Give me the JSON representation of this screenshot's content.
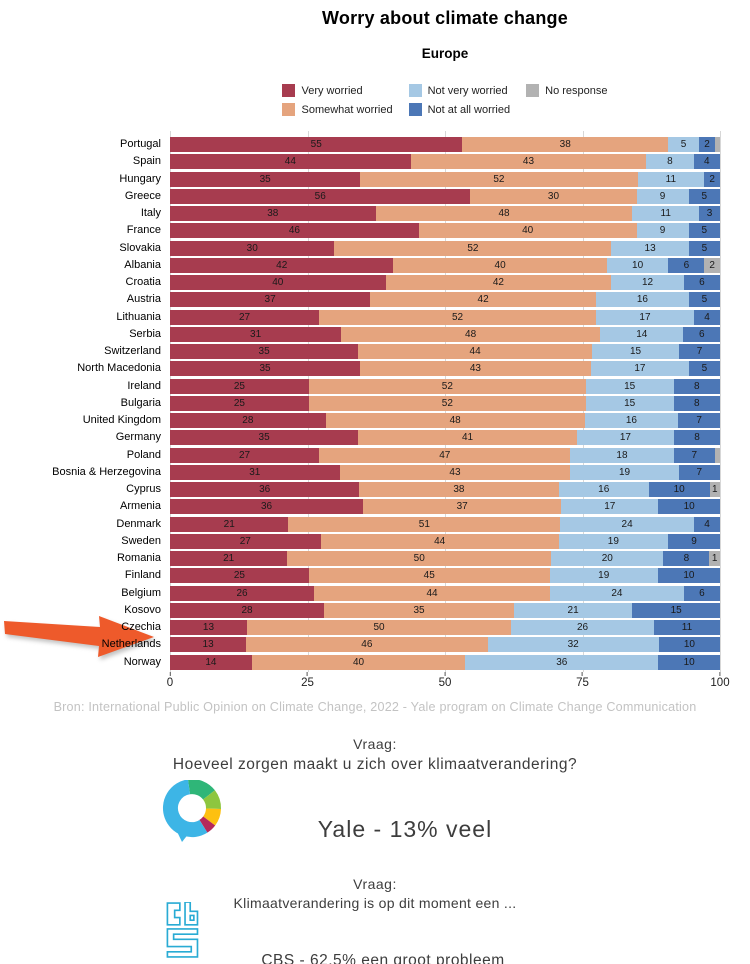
{
  "chart": {
    "title": "Worry about climate change",
    "subtitle": "Europe"
  },
  "legend": {
    "items": [
      {
        "label": "Very worried",
        "color": "#A73C4F"
      },
      {
        "label": "Somewhat worried",
        "color": "#E5A47E"
      },
      {
        "label": "Not very worried",
        "color": "#A5C8E4"
      },
      {
        "label": "Not at all worried",
        "color": "#4C77B6"
      },
      {
        "label": "No response",
        "color": "#B2B2B2"
      }
    ]
  },
  "chart_data": {
    "type": "bar",
    "stacked": true,
    "orientation": "horizontal",
    "grid": true,
    "legend_position": "top-center",
    "xlim": [
      0,
      100
    ],
    "x_ticks": [
      0,
      25,
      50,
      75,
      100
    ],
    "series_names": [
      "Very worried",
      "Somewhat worried",
      "Not very worried",
      "Not at all worried",
      "No response"
    ],
    "series_colors": [
      "#A73C4F",
      "#E5A47E",
      "#A5C8E4",
      "#4C77B6",
      "#B2B2B2"
    ],
    "rows": [
      {
        "country": "Portugal",
        "values": [
          55,
          38,
          5,
          2,
          1
        ],
        "labels": [
          "55",
          "38",
          "5",
          "2",
          ""
        ]
      },
      {
        "country": "Spain",
        "values": [
          44,
          43,
          8,
          4,
          0
        ],
        "labels": [
          "44",
          "43",
          "8",
          "4",
          ""
        ]
      },
      {
        "country": "Hungary",
        "values": [
          35,
          52,
          11,
          2,
          0
        ],
        "labels": [
          "35",
          "52",
          "11",
          "2",
          ""
        ]
      },
      {
        "country": "Greece",
        "values": [
          56,
          30,
          9,
          5,
          0
        ],
        "labels": [
          "56",
          "30",
          "9",
          "5",
          ""
        ]
      },
      {
        "country": "Italy",
        "values": [
          38,
          48,
          11,
          3,
          0
        ],
        "labels": [
          "38",
          "48",
          "11",
          "3",
          ""
        ]
      },
      {
        "country": "France",
        "values": [
          46,
          40,
          9,
          5,
          0
        ],
        "labels": [
          "46",
          "40",
          "9",
          "5",
          ""
        ]
      },
      {
        "country": "Slovakia",
        "values": [
          30,
          52,
          13,
          5,
          0
        ],
        "labels": [
          "30",
          "52",
          "13",
          "5",
          ""
        ]
      },
      {
        "country": "Albania",
        "values": [
          42,
          40,
          10,
          6,
          2
        ],
        "labels": [
          "42",
          "40",
          "10",
          "6",
          "2"
        ]
      },
      {
        "country": "Croatia",
        "values": [
          40,
          42,
          12,
          6,
          0
        ],
        "labels": [
          "40",
          "42",
          "12",
          "6",
          ""
        ]
      },
      {
        "country": "Austria",
        "values": [
          37,
          42,
          16,
          5,
          0
        ],
        "labels": [
          "37",
          "42",
          "16",
          "5",
          ""
        ]
      },
      {
        "country": "Lithuania",
        "values": [
          27,
          52,
          17,
          4,
          0
        ],
        "labels": [
          "27",
          "52",
          "17",
          "4",
          ""
        ]
      },
      {
        "country": "Serbia",
        "values": [
          31,
          48,
          14,
          6,
          0
        ],
        "labels": [
          "31",
          "48",
          "14",
          "6",
          ""
        ]
      },
      {
        "country": "Switzerland",
        "values": [
          35,
          44,
          15,
          7,
          0
        ],
        "labels": [
          "35",
          "44",
          "15",
          "7",
          ""
        ]
      },
      {
        "country": "North Macedonia",
        "values": [
          35,
          43,
          17,
          5,
          0
        ],
        "labels": [
          "35",
          "43",
          "17",
          "5",
          ""
        ]
      },
      {
        "country": "Ireland",
        "values": [
          25,
          52,
          15,
          8,
          0
        ],
        "labels": [
          "25",
          "52",
          "15",
          "8",
          ""
        ]
      },
      {
        "country": "Bulgaria",
        "values": [
          25,
          52,
          15,
          8,
          0
        ],
        "labels": [
          "25",
          "52",
          "15",
          "8",
          ""
        ]
      },
      {
        "country": "United Kingdom",
        "values": [
          28,
          48,
          16,
          7,
          0
        ],
        "labels": [
          "28",
          "48",
          "16",
          "7",
          ""
        ]
      },
      {
        "country": "Germany",
        "values": [
          35,
          41,
          17,
          8,
          0
        ],
        "labels": [
          "35",
          "41",
          "17",
          "8",
          ""
        ]
      },
      {
        "country": "Poland",
        "values": [
          27,
          47,
          18,
          7,
          1
        ],
        "labels": [
          "27",
          "47",
          "18",
          "7",
          ""
        ]
      },
      {
        "country": "Bosnia & Herzegovina",
        "values": [
          31,
          43,
          19,
          7,
          0
        ],
        "labels": [
          "31",
          "43",
          "19",
          "7",
          ""
        ]
      },
      {
        "country": "Cyprus",
        "values": [
          36,
          38,
          16,
          10,
          1
        ],
        "labels": [
          "36",
          "38",
          "16",
          "10",
          "1"
        ]
      },
      {
        "country": "Armenia",
        "values": [
          36,
          37,
          17,
          10,
          0
        ],
        "labels": [
          "36",
          "37",
          "17",
          "10",
          ""
        ]
      },
      {
        "country": "Denmark",
        "values": [
          21,
          51,
          24,
          4,
          0
        ],
        "labels": [
          "21",
          "51",
          "24",
          "4",
          ""
        ]
      },
      {
        "country": "Sweden",
        "values": [
          27,
          44,
          19,
          9,
          0
        ],
        "labels": [
          "27",
          "44",
          "19",
          "9",
          ""
        ]
      },
      {
        "country": "Romania",
        "values": [
          21,
          50,
          20,
          8,
          1
        ],
        "labels": [
          "21",
          "50",
          "20",
          "8",
          "1"
        ]
      },
      {
        "country": "Finland",
        "values": [
          25,
          45,
          19,
          10,
          0
        ],
        "labels": [
          "25",
          "45",
          "19",
          "10",
          ""
        ]
      },
      {
        "country": "Belgium",
        "values": [
          26,
          44,
          24,
          6,
          0
        ],
        "labels": [
          "26",
          "44",
          "24",
          "6",
          ""
        ]
      },
      {
        "country": "Kosovo",
        "values": [
          28,
          35,
          21,
          15,
          0
        ],
        "labels": [
          "28",
          "35",
          "21",
          "15",
          ""
        ]
      },
      {
        "country": "Czechia",
        "values": [
          13,
          50,
          26,
          11,
          0
        ],
        "labels": [
          "13",
          "50",
          "26",
          "11",
          ""
        ]
      },
      {
        "country": "Netherlands",
        "values": [
          13,
          46,
          32,
          10,
          0
        ],
        "labels": [
          "13",
          "46",
          "32",
          "10",
          ""
        ]
      },
      {
        "country": "Norway",
        "values": [
          14,
          40,
          36,
          10,
          0
        ],
        "labels": [
          "14",
          "40",
          "36",
          "10",
          ""
        ]
      }
    ],
    "highlighted_row": "Netherlands"
  },
  "source_note": "Bron: International Public Opinion on Climate Change, 2022 - Yale program on Climate Change Communication",
  "yale_section": {
    "question_label": "Vraag:",
    "question": "Hoeveel zorgen maakt u zich over klimaatverandering?",
    "result": "Yale - 13% veel"
  },
  "cbs_section": {
    "question_label": "Vraag:",
    "question": "Klimaatverandering is op dit moment een ...",
    "result": "CBS - 62,5% een groot probleem"
  },
  "accent_colors": {
    "arrow": "#EE5A2B",
    "cbs_cyan": "#29ABD4",
    "yale_blue": "#3DB5E6",
    "yale_green": "#2FB678",
    "yale_lightgreen": "#8DC63F",
    "yale_yellow": "#FDC010",
    "yale_crimson": "#B5295B"
  }
}
